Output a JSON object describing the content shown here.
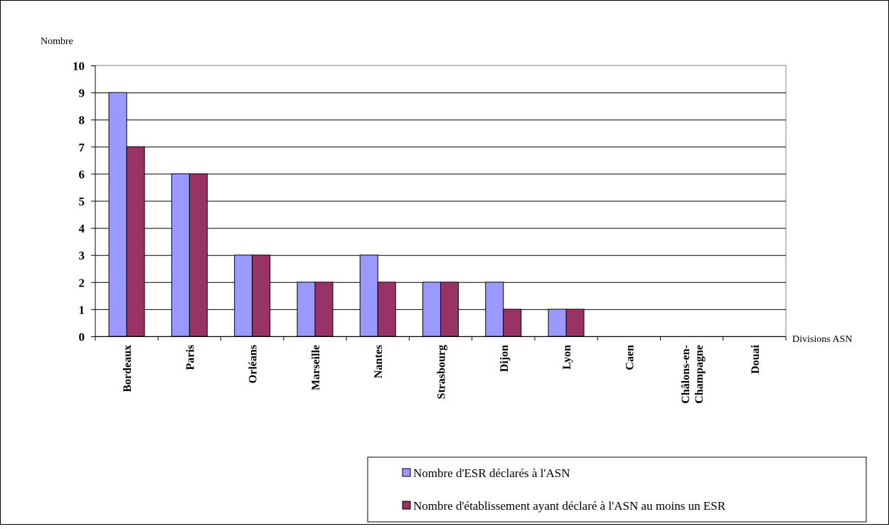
{
  "chart_data": {
    "type": "bar",
    "title": "",
    "ylabel": "Nombre",
    "xlabel": "Divisions ASN",
    "ylim": [
      0,
      10
    ],
    "yticks": [
      "0",
      "1",
      "2",
      "3",
      "4",
      "5",
      "6",
      "7",
      "8",
      "9",
      "10"
    ],
    "grid": true,
    "legend_position": "bottom-right",
    "categories": [
      "Bordeaux",
      "Paris",
      "Orléans",
      "Marseille",
      "Nantes",
      "Strasbourg",
      "Dijon",
      "Lyon",
      "Caen",
      "Châlons-en-Champagne",
      "Douai"
    ],
    "category_lines": [
      [
        "Bordeaux"
      ],
      [
        "Paris"
      ],
      [
        "Orléans"
      ],
      [
        "Marseille"
      ],
      [
        "Nantes"
      ],
      [
        "Strasbourg"
      ],
      [
        "Dijon"
      ],
      [
        "Lyon"
      ],
      [
        "Caen"
      ],
      [
        "Châlons-en-",
        "Champagne"
      ],
      [
        "Douai"
      ]
    ],
    "series": [
      {
        "name": "Nombre d'ESR déclarés à l'ASN",
        "color": "#9999ff",
        "values": [
          9,
          6,
          3,
          2,
          3,
          2,
          2,
          1,
          0,
          0,
          0
        ]
      },
      {
        "name": "Nombre d'établissement ayant déclaré à l'ASN au moins un ESR",
        "color": "#993366",
        "values": [
          7,
          6,
          3,
          2,
          2,
          2,
          1,
          1,
          0,
          0,
          0
        ]
      }
    ]
  }
}
